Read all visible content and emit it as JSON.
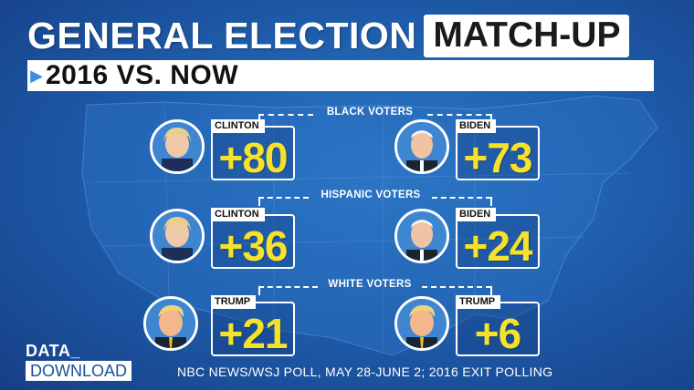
{
  "headline": {
    "title": "GENERAL ELECTION",
    "highlight": "MATCH-UP"
  },
  "subheadline": {
    "text": "2016 VS. NOW"
  },
  "groups": [
    {
      "label": "BLACK VOTERS",
      "left": {
        "candidate": "CLINTON",
        "margin": "+80",
        "portrait": "clinton-portrait"
      },
      "right": {
        "candidate": "BIDEN",
        "margin": "+73",
        "portrait": "biden-portrait"
      }
    },
    {
      "label": "HISPANIC VOTERS",
      "left": {
        "candidate": "CLINTON",
        "margin": "+36",
        "portrait": "clinton-portrait"
      },
      "right": {
        "candidate": "BIDEN",
        "margin": "+24",
        "portrait": "biden-portrait"
      }
    },
    {
      "label": "WHITE VOTERS",
      "left": {
        "candidate": "TRUMP",
        "margin": "+21",
        "portrait": "trump-portrait"
      },
      "right": {
        "candidate": "TRUMP",
        "margin": "+6",
        "portrait": "trump-portrait"
      }
    }
  ],
  "footer": {
    "logo_top": "DATA_",
    "logo_bottom": "DOWNLOAD",
    "source": "NBC NEWS/WSJ POLL, MAY 28-JUNE 2; 2016 EXIT POLLING"
  },
  "colors": {
    "background": "#1f5fae",
    "margin_text": "#f6e22a",
    "accent_arrow": "#3d8ee0"
  }
}
